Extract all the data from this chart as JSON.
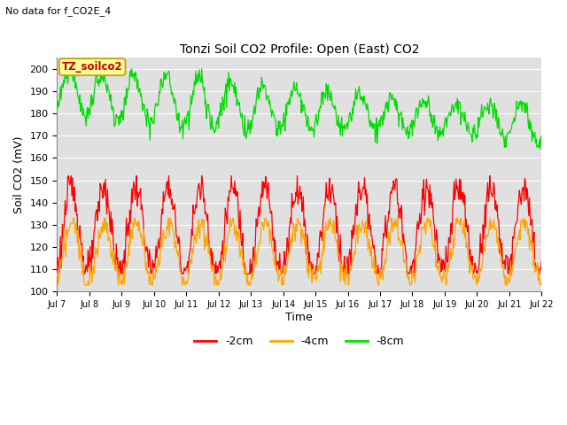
{
  "title": "Tonzi Soil CO2 Profile: Open (East) CO2",
  "subtitle": "No data for f_CO2E_4",
  "ylabel": "Soil CO2 (mV)",
  "xlabel": "Time",
  "ylim": [
    100,
    205
  ],
  "yticks": [
    100,
    110,
    120,
    130,
    140,
    150,
    160,
    170,
    180,
    190,
    200
  ],
  "xtick_labels": [
    "Jul 7",
    "Jul 8",
    "Jul 9",
    "Jul 10",
    "Jul 11",
    "Jul 12",
    "Jul 13",
    "Jul 14",
    "Jul 15",
    "Jul 16",
    "Jul 17",
    "Jul 18",
    "Jul 19",
    "Jul 20",
    "Jul 21",
    "Jul 22"
  ],
  "color_2cm": "#ff0000",
  "color_4cm": "#ffa500",
  "color_8cm": "#00dd00",
  "legend_labels": [
    "-2cm",
    "-4cm",
    "-8cm"
  ],
  "bg_color": "#e0e0e0",
  "annotation_box": "TZ_soilco2",
  "annotation_box_bg": "#ffff99",
  "annotation_box_border": "#cc9900"
}
